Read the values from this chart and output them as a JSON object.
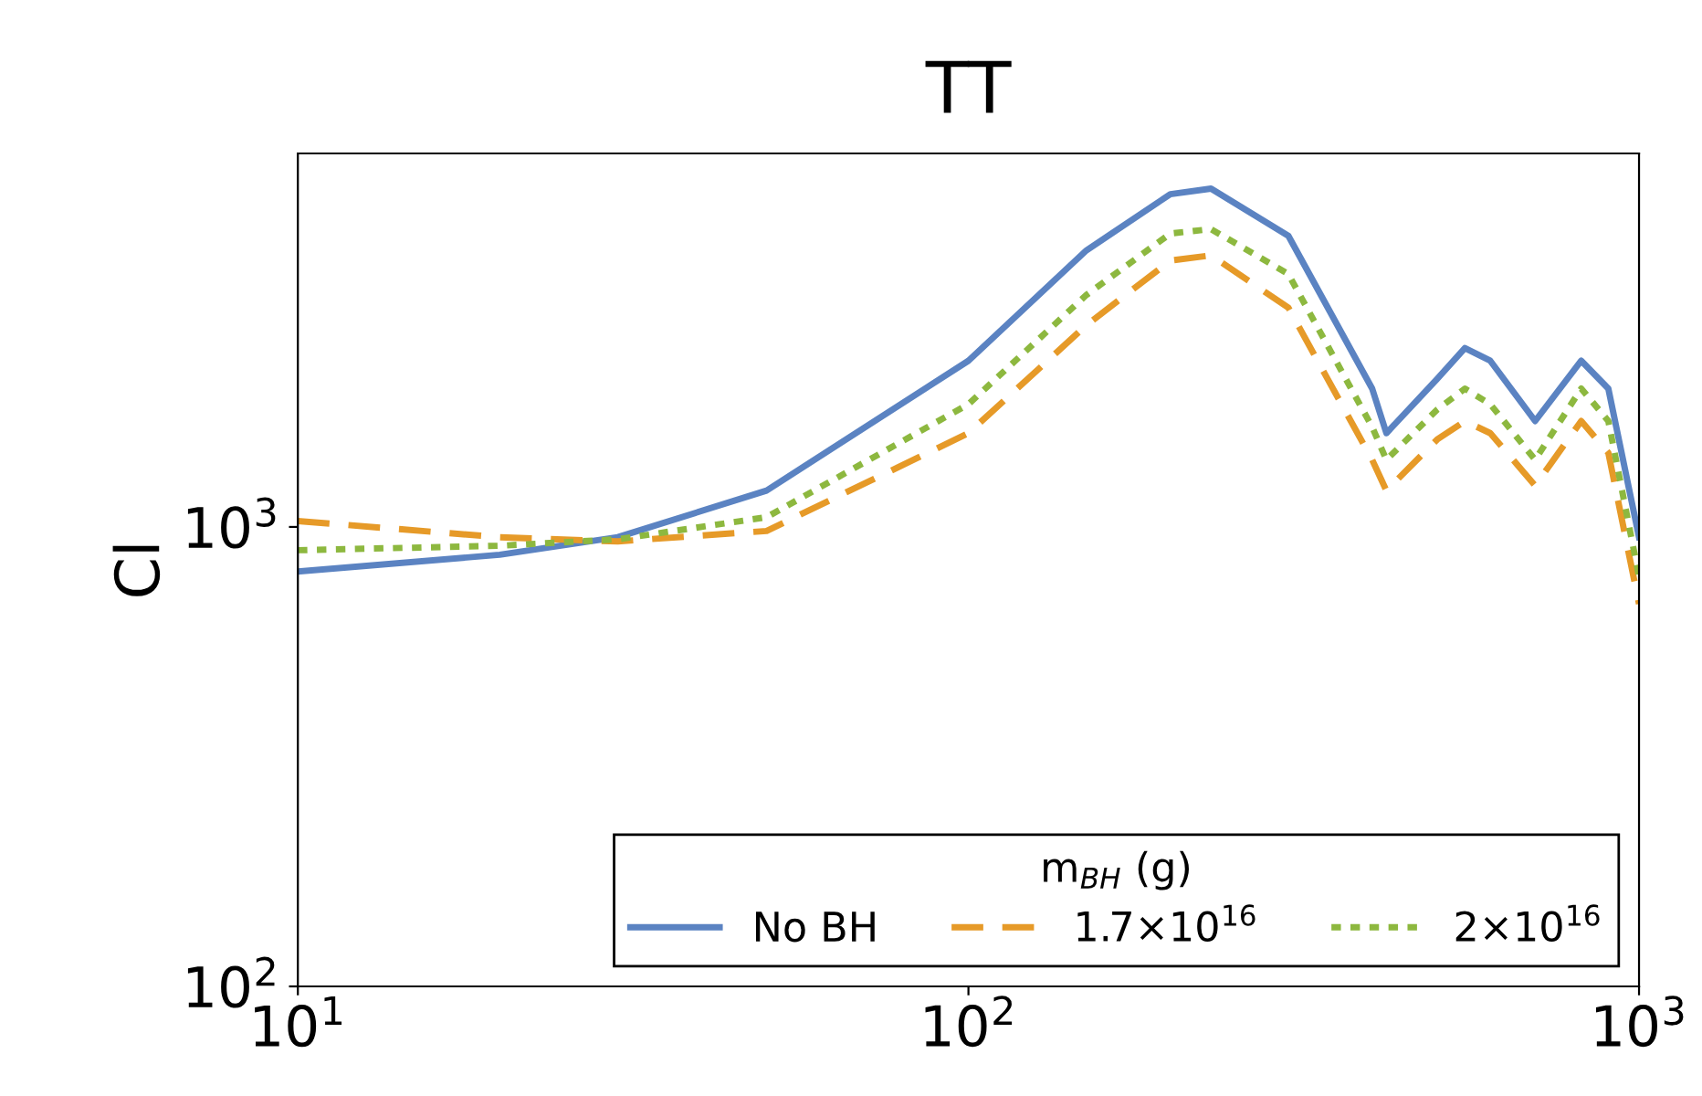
{
  "chart_data": {
    "type": "line",
    "title": "TT",
    "ylabel": "Cl",
    "log": "xy",
    "x": [
      10,
      20,
      30,
      50,
      100,
      150,
      200,
      230,
      300,
      400,
      420,
      500,
      550,
      600,
      700,
      820,
      900,
      1000
    ],
    "xlim": [
      10,
      1000
    ],
    "xticks": [
      {
        "value": 10,
        "label": "10$^{1}$"
      },
      {
        "value": 100,
        "label": "10$^{2}$"
      },
      {
        "value": 1000,
        "label": "10$^{3}$"
      }
    ],
    "ylim": [
      100,
      6500
    ],
    "yticks": [
      {
        "value": 100,
        "label": "10$^{2}$"
      },
      {
        "value": 1000,
        "label": "10$^{3}$"
      }
    ],
    "grid": false,
    "legend": "bottom right",
    "legend_title": "m$_{BH}$ (g)",
    "series": [
      {
        "name": "No BH",
        "color": "#5b83c2",
        "line_style": "solid",
        "values": [
          800,
          870,
          950,
          1200,
          2300,
          4000,
          5300,
          5450,
          4300,
          2000,
          1600,
          2100,
          2450,
          2300,
          1700,
          2300,
          2000,
          950
        ]
      },
      {
        "name": "1.7×10$^{16}$",
        "color": "#e69a28",
        "line_style": "dashed",
        "values": [
          1030,
          950,
          930,
          980,
          1600,
          2750,
          3800,
          3900,
          3000,
          1400,
          1200,
          1550,
          1700,
          1600,
          1230,
          1700,
          1450,
          680
        ]
      },
      {
        "name": "2×10$^{16}$",
        "color": "#8db83f",
        "line_style": "dotted",
        "values": [
          890,
          910,
          940,
          1050,
          1850,
          3200,
          4350,
          4450,
          3550,
          1650,
          1400,
          1800,
          2000,
          1850,
          1400,
          2000,
          1700,
          780
        ]
      }
    ]
  }
}
